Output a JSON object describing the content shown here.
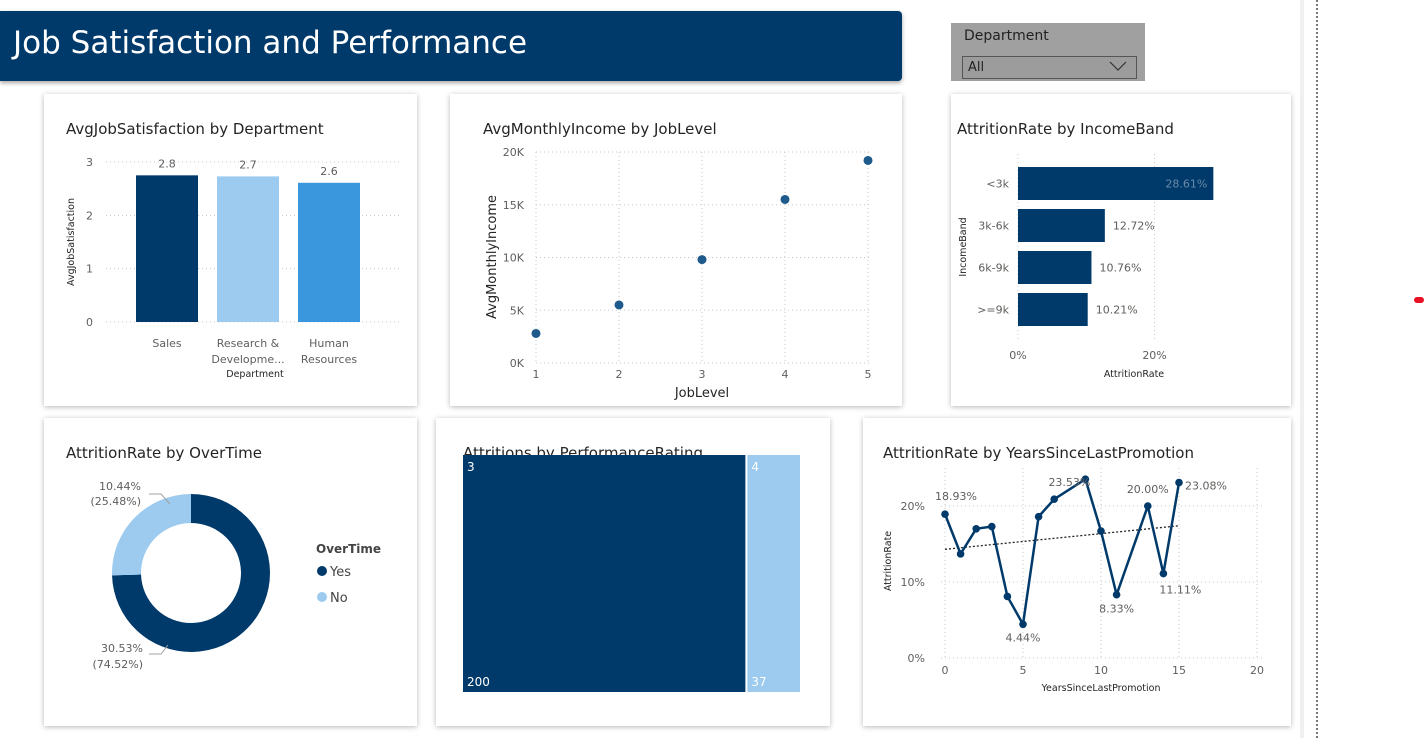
{
  "header": {
    "title": "Job Satisfaction and Performance"
  },
  "slicer": {
    "label": "Department",
    "value": "All"
  },
  "colors": {
    "dark": "#003a6b",
    "light": "#9ccbef",
    "mid": "#3a96dd",
    "header": "#003a6b"
  },
  "chart_data": [
    {
      "id": "jobsat",
      "type": "bar",
      "title": "AvgJobSatisfaction by Department",
      "xlabel": "Department",
      "ylabel": "AvgJobSatisfaction",
      "categories": [
        "Sales",
        "Research & Developme...",
        "Human Resources"
      ],
      "values": [
        2.75,
        2.73,
        2.61
      ],
      "data_labels": [
        "2.8",
        "2.7",
        "2.6"
      ],
      "ylim": [
        0,
        3
      ],
      "yticks": [
        "0",
        "1",
        "2",
        "3"
      ]
    },
    {
      "id": "income",
      "type": "scatter",
      "title": "AvgMonthlyIncome by JobLevel",
      "xlabel": "JobLevel",
      "ylabel": "AvgMonthlyIncome",
      "x": [
        1,
        2,
        3,
        4,
        5
      ],
      "y": [
        2800,
        5500,
        9800,
        15500,
        19200
      ],
      "xticks": [
        "1",
        "2",
        "3",
        "4",
        "5"
      ],
      "yticks": [
        "0K",
        "5K",
        "10K",
        "15K",
        "20K"
      ],
      "ylim": [
        0,
        20000
      ]
    },
    {
      "id": "band",
      "type": "bar",
      "orientation": "horizontal",
      "title": "AttritionRate by IncomeBand",
      "xlabel": "AttritionRate",
      "ylabel": "IncomeBand",
      "categories": [
        "<3k",
        "3k-6k",
        "6k-9k",
        ">=9k"
      ],
      "values": [
        28.61,
        12.72,
        10.76,
        10.21
      ],
      "data_labels": [
        "28.61%",
        "12.72%",
        "10.76%",
        "10.21%"
      ],
      "xticks": [
        "0%",
        "20%"
      ],
      "xlim": [
        0,
        29
      ]
    },
    {
      "id": "overtime",
      "type": "pie",
      "title": "AttritionRate by OverTime",
      "legend_title": "OverTime",
      "slices": [
        {
          "name": "Yes",
          "value": 30.53,
          "label": "30.53%",
          "pct": "(74.52%)"
        },
        {
          "name": "No",
          "value": 10.44,
          "label": "10.44%",
          "pct": "(25.48%)"
        }
      ]
    },
    {
      "id": "perf",
      "type": "treemap",
      "title": "Attritions by PerformanceRating",
      "items": [
        {
          "rating": "3",
          "value": 200
        },
        {
          "rating": "4",
          "value": 37
        }
      ]
    },
    {
      "id": "promo",
      "type": "line",
      "title": "AttritionRate by YearsSinceLastPromotion",
      "xlabel": "YearsSinceLastPromotion",
      "ylabel": "AttritionRate",
      "x": [
        0,
        1,
        2,
        3,
        4,
        5,
        6,
        7,
        9,
        10,
        11,
        13,
        14,
        15
      ],
      "y": [
        18.93,
        13.7,
        17.0,
        17.3,
        8.1,
        4.44,
        18.6,
        20.9,
        23.53,
        16.7,
        8.33,
        20.0,
        11.11,
        23.08
      ],
      "point_labels": [
        {
          "x": 0,
          "text": "18.93%"
        },
        {
          "x": 5,
          "text": "4.44%"
        },
        {
          "x": 9,
          "text": "23.53%"
        },
        {
          "x": 11,
          "text": "8.33%"
        },
        {
          "x": 13,
          "text": "20.00%"
        },
        {
          "x": 14,
          "text": "11.11%"
        },
        {
          "x": 15,
          "text": "23.08%"
        }
      ],
      "trend": [
        14.3,
        17.4
      ],
      "xticks": [
        "0",
        "5",
        "10",
        "15",
        "20"
      ],
      "yticks": [
        "0%",
        "10%",
        "20%"
      ],
      "xlim": [
        0,
        20
      ],
      "ylim": [
        0,
        25
      ]
    }
  ]
}
